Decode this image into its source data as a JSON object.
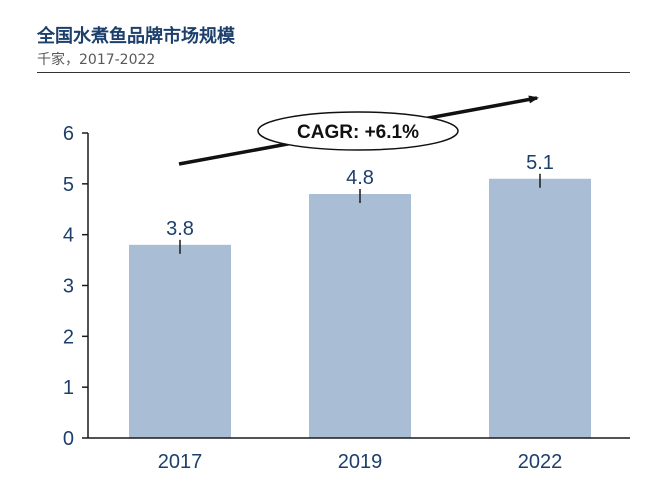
{
  "header": {
    "title": "全国水煮鱼品牌市场规模",
    "subtitle": "千家，2017-2022"
  },
  "annotation": {
    "cagr_label": "CAGR: +6.1%"
  },
  "colors": {
    "bar": "#a9bdd4",
    "axis": "#1a1a1a",
    "tick_text": "#1c3f6b",
    "arrow": "#111111"
  },
  "chart_data": {
    "type": "bar",
    "categories": [
      "2017",
      "2019",
      "2022"
    ],
    "values": [
      3.8,
      4.8,
      5.1
    ],
    "data_labels": [
      "3.8",
      "4.8",
      "5.1"
    ],
    "title": "全国水煮鱼品牌市场规模",
    "subtitle": "千家，2017-2022",
    "xlabel": "",
    "ylabel": "",
    "ylim": [
      0,
      6
    ],
    "yticks": [
      0,
      1,
      2,
      3,
      4,
      5,
      6
    ],
    "grid": false,
    "legend": "none"
  }
}
